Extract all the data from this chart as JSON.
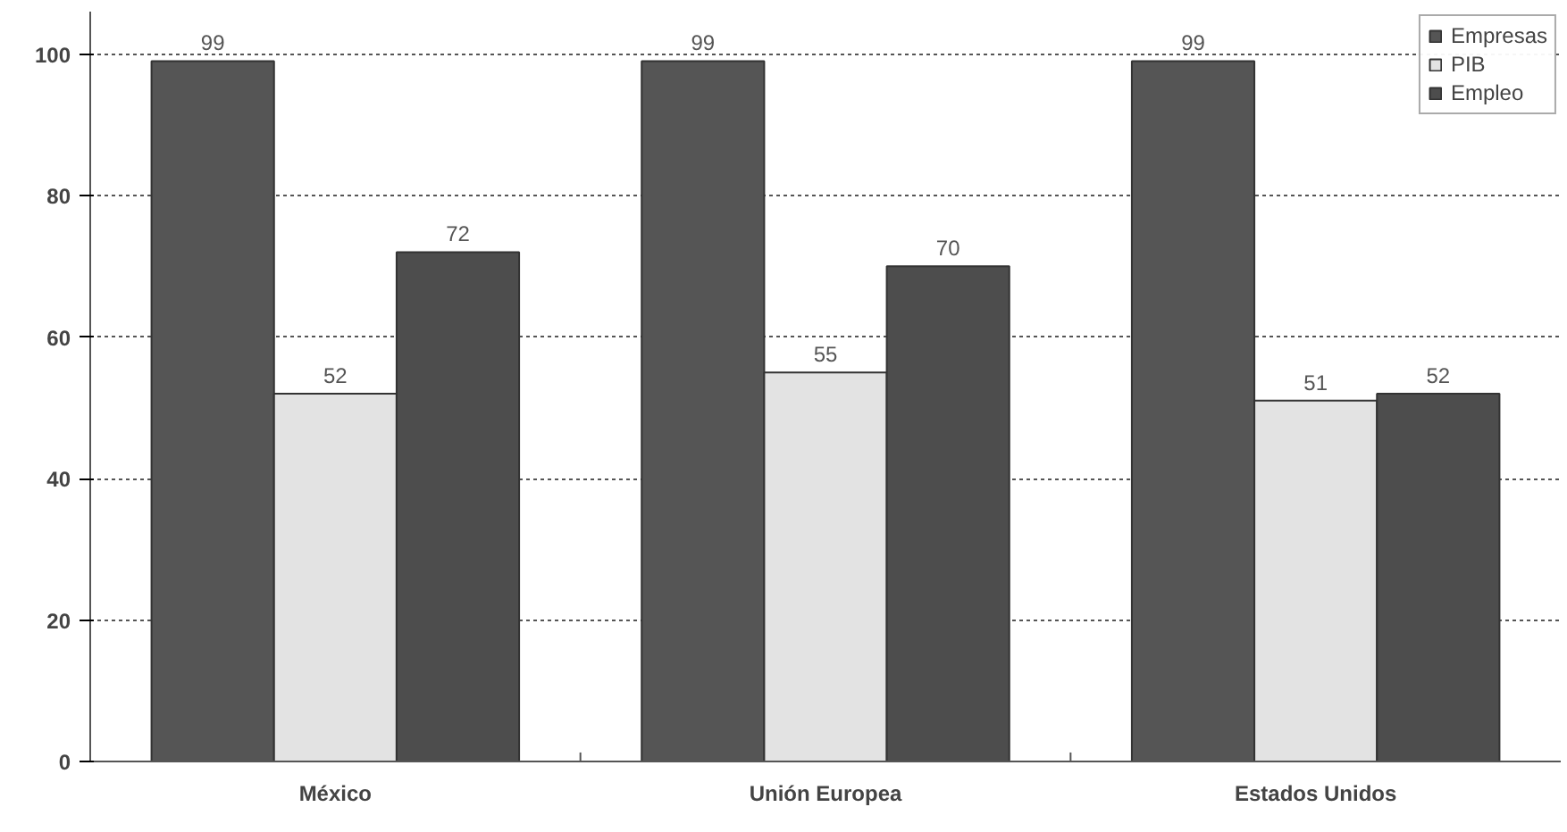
{
  "chart_data": {
    "type": "bar",
    "categories": [
      "México",
      "Unión Europea",
      "Estados Unidos"
    ],
    "series": [
      {
        "name": "Empresas",
        "color": "#555555",
        "values": [
          99,
          99,
          99
        ]
      },
      {
        "name": "PIB",
        "color": "#e3e3e3",
        "values": [
          52,
          55,
          51
        ]
      },
      {
        "name": "Empleo",
        "color": "#4d4d4d",
        "values": [
          72,
          70,
          52
        ]
      }
    ],
    "ylim": [
      0,
      106
    ],
    "yticks": [
      0,
      20,
      40,
      60,
      80,
      100
    ],
    "grid": "y",
    "legend": "top right",
    "data_labels": true
  }
}
